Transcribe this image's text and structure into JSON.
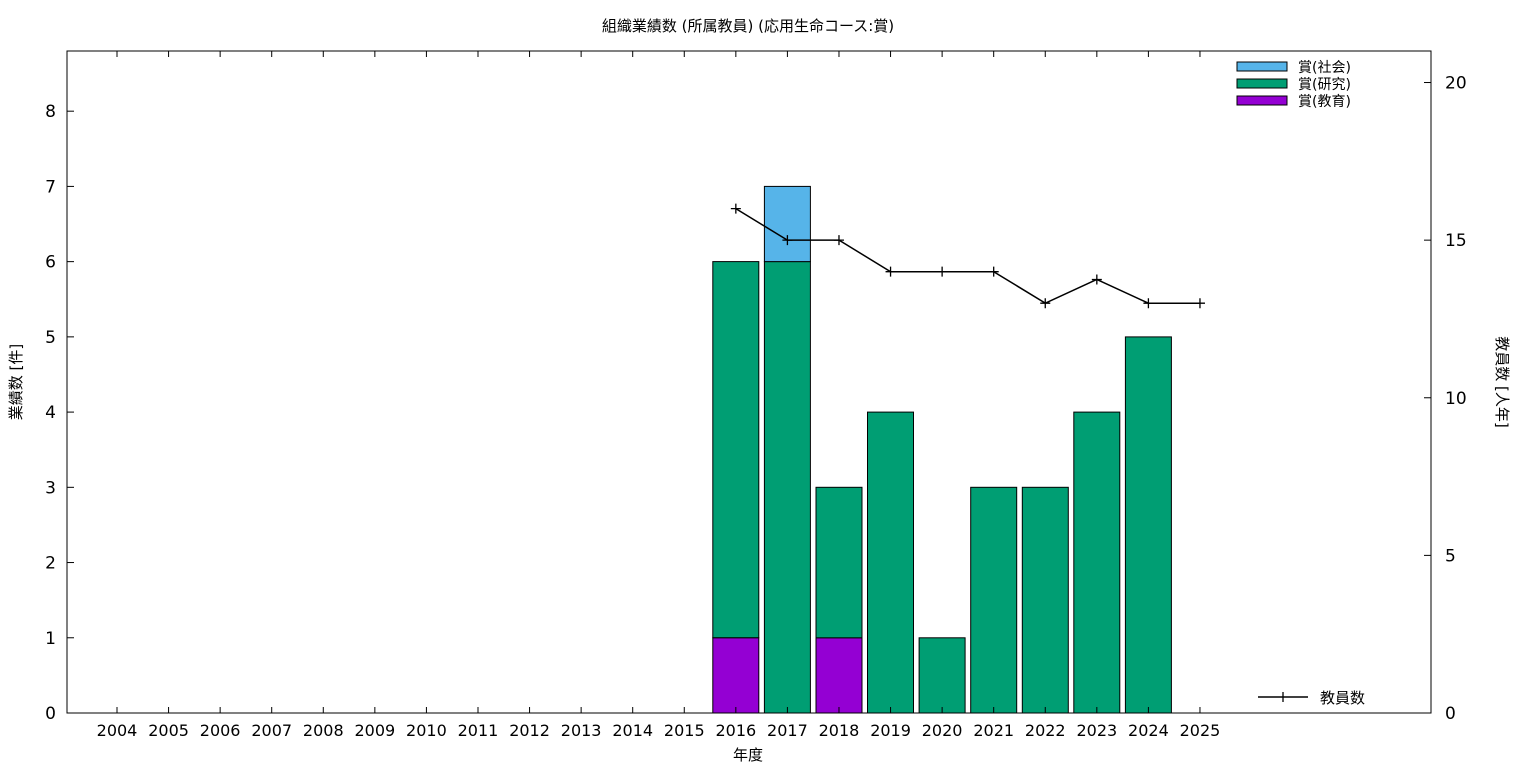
{
  "chart_data": {
    "type": "bar",
    "title": "組織業績数 (所属教員) (応用生命コース:賞)",
    "xlabel": "年度",
    "ylabel": "業績数 [件]",
    "y2label": "教員数 [人年]",
    "categories": [
      "2004",
      "2005",
      "2006",
      "2007",
      "2008",
      "2009",
      "2010",
      "2011",
      "2012",
      "2013",
      "2014",
      "2015",
      "2016",
      "2017",
      "2018",
      "2019",
      "2020",
      "2021",
      "2022",
      "2023",
      "2024",
      "2025"
    ],
    "ylim": [
      0,
      8.8
    ],
    "yticks": [
      0,
      1,
      2,
      3,
      4,
      5,
      6,
      7,
      8
    ],
    "y2lim": [
      0,
      21
    ],
    "y2ticks": [
      0,
      5,
      10,
      15,
      20
    ],
    "stacked": true,
    "series": [
      {
        "name": "賞(教育)",
        "color": "#9400d3",
        "values": [
          0,
          0,
          0,
          0,
          0,
          0,
          0,
          0,
          0,
          0,
          0,
          0,
          1,
          0,
          1,
          0,
          0,
          0,
          0,
          0,
          0,
          0
        ]
      },
      {
        "name": "賞(研究)",
        "color": "#009e73",
        "values": [
          0,
          0,
          0,
          0,
          0,
          0,
          0,
          0,
          0,
          0,
          0,
          0,
          5,
          6,
          2,
          4,
          1,
          3,
          3,
          4,
          5,
          0
        ]
      },
      {
        "name": "賞(社会)",
        "color": "#56b4e9",
        "values": [
          0,
          0,
          0,
          0,
          0,
          0,
          0,
          0,
          0,
          0,
          0,
          0,
          0,
          1,
          0,
          0,
          0,
          0,
          0,
          0,
          0,
          0
        ]
      }
    ],
    "line_series": {
      "name": "教員数",
      "color": "#000000",
      "axis": "right",
      "x": [
        "2016",
        "2017",
        "2018",
        "2019",
        "2020",
        "2021",
        "2022",
        "2023",
        "2024",
        "2025"
      ],
      "values": [
        16,
        15,
        15,
        14,
        14,
        14,
        13,
        13.75,
        13,
        13
      ]
    },
    "legend_top": [
      "賞(社会)",
      "賞(研究)",
      "賞(教育)"
    ],
    "legend_bottom": "教員数",
    "grid": false
  }
}
